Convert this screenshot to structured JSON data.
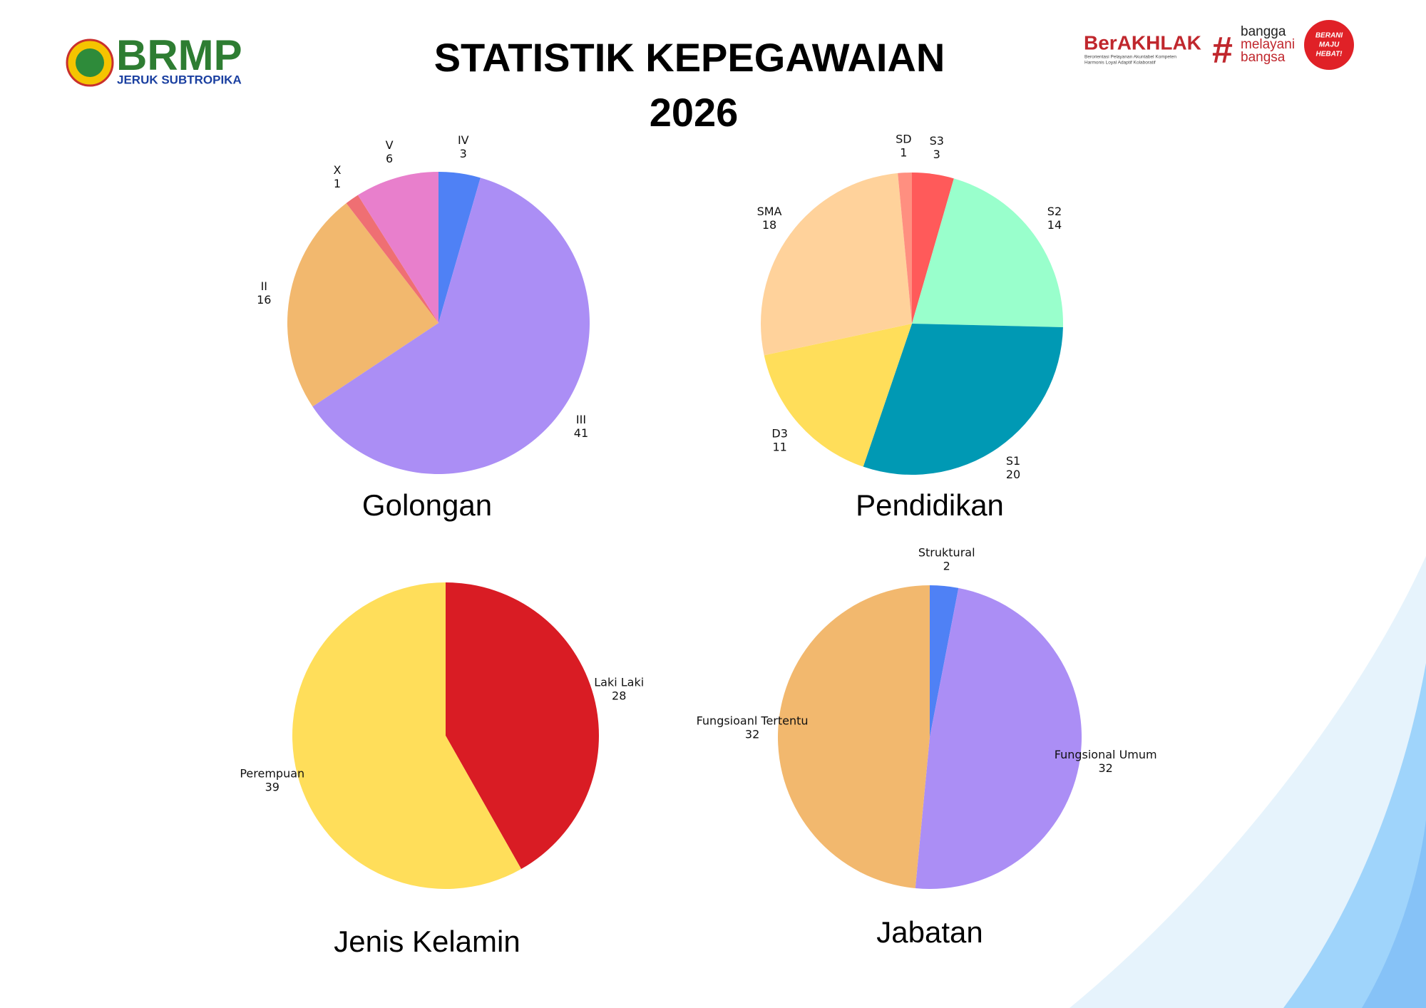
{
  "header": {
    "title": [
      "STATISTIK KEPEGAWAIAN",
      "2026"
    ],
    "logo_left": {
      "name": "BRMP",
      "subtitle": "JERUK SUBTROPIKA"
    },
    "logo_right": {
      "name": "BerAKHLAK",
      "tagline": [
        "Berorientasi Pelayanan Akuntabel Kompeten",
        "Harmonis Loyal Adaptif Kolaboratif"
      ],
      "hashtag": [
        "bangga",
        "melayani",
        "bangsa"
      ],
      "badge": [
        "BERANI",
        "MAJU",
        "HEBAT!"
      ]
    }
  },
  "chart_data": [
    {
      "type": "pie",
      "title": "Golongan",
      "categories": [
        "IV",
        "III",
        "II",
        "X",
        "V"
      ],
      "values": [
        3,
        41,
        16,
        1,
        6
      ],
      "colors": [
        "#4f81f5",
        "#ab8ef5",
        "#f2b86e",
        "#ef6f73",
        "#e87fcc"
      ]
    },
    {
      "type": "pie",
      "title": "Pendidikan",
      "categories": [
        "S3",
        "S2",
        "S1",
        "D3",
        "SMA",
        "SD"
      ],
      "values": [
        3,
        14,
        20,
        11,
        18,
        1
      ],
      "colors": [
        "#ff5a5a",
        "#99ffcc",
        "#0099b4",
        "#ffde5a",
        "#ffd29b",
        "#ff8f80"
      ]
    },
    {
      "type": "pie",
      "title": "Jenis Kelamin",
      "categories": [
        "Laki Laki",
        "Perempuan"
      ],
      "values": [
        28,
        39
      ],
      "colors": [
        "#d91c24",
        "#ffde5a"
      ]
    },
    {
      "type": "pie",
      "title": "Jabatan",
      "categories": [
        "Struktural",
        "Fungsional Umum",
        "Fungsioanl Tertentu"
      ],
      "values": [
        2,
        32,
        32
      ],
      "colors": [
        "#4f81f5",
        "#ab8ef5",
        "#f2b86e"
      ]
    }
  ]
}
